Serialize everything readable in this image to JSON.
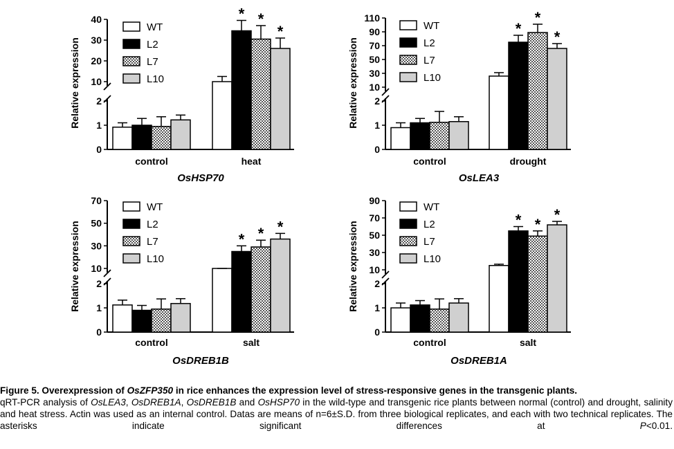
{
  "figure": {
    "legend_entries": [
      "WT",
      "L2",
      "L7",
      "L10"
    ],
    "series_colors": {
      "WT": "#ffffff",
      "L2": "#000000",
      "L7": "#b0b0b0",
      "L10": "#d0d0d0"
    },
    "significance_marker": "*"
  },
  "chart_data": [
    {
      "type": "bar",
      "gene": "OsHSP70",
      "ylabel": "Relative expression",
      "categories": [
        "control",
        "heat"
      ],
      "upper_ticks": [
        "10",
        "20",
        "30",
        "40"
      ],
      "lower_ticks": [
        "0",
        "1",
        "2"
      ],
      "upper_ylim": [
        10,
        40
      ],
      "lower_ylim": [
        0,
        2
      ],
      "series": [
        {
          "name": "WT",
          "values": [
            0.92,
            9.0
          ],
          "errors": [
            0.18,
            3.5
          ],
          "significant": [
            false,
            false
          ]
        },
        {
          "name": "L2",
          "values": [
            1.0,
            34.5
          ],
          "errors": [
            0.28,
            5.0
          ],
          "significant": [
            false,
            true
          ]
        },
        {
          "name": "L7",
          "values": [
            0.95,
            30.5
          ],
          "errors": [
            0.4,
            6.5
          ],
          "significant": [
            false,
            true
          ]
        },
        {
          "name": "L10",
          "values": [
            1.22,
            26.0
          ],
          "errors": [
            0.2,
            5.0
          ],
          "significant": [
            false,
            true
          ]
        }
      ]
    },
    {
      "type": "bar",
      "gene": "OsLEA3",
      "ylabel": "Relative expression",
      "categories": [
        "control",
        "drought"
      ],
      "upper_ticks": [
        "10",
        "30",
        "50",
        "70",
        "90",
        "110"
      ],
      "lower_ticks": [
        "0",
        "1",
        "2"
      ],
      "upper_ylim": [
        10,
        110
      ],
      "lower_ylim": [
        0,
        2
      ],
      "series": [
        {
          "name": "WT",
          "values": [
            0.9,
            26.0
          ],
          "errors": [
            0.2,
            5.0
          ],
          "significant": [
            false,
            false
          ]
        },
        {
          "name": "L2",
          "values": [
            1.1,
            75.0
          ],
          "errors": [
            0.18,
            10.0
          ],
          "significant": [
            false,
            true
          ]
        },
        {
          "name": "L7",
          "values": [
            1.12,
            89.0
          ],
          "errors": [
            0.45,
            12.0
          ],
          "significant": [
            false,
            true
          ]
        },
        {
          "name": "L10",
          "values": [
            1.15,
            66.0
          ],
          "errors": [
            0.2,
            7.0
          ],
          "significant": [
            false,
            true
          ]
        }
      ]
    },
    {
      "type": "bar",
      "gene": "OsDREB1B",
      "ylabel": "Relative expression",
      "categories": [
        "control",
        "salt"
      ],
      "upper_ticks": [
        "10",
        "30",
        "50",
        "70"
      ],
      "lower_ticks": [
        "0",
        "1",
        "2"
      ],
      "upper_ylim": [
        10,
        70
      ],
      "lower_ylim": [
        0,
        2
      ],
      "series": [
        {
          "name": "WT",
          "values": [
            1.12,
            7.0
          ],
          "errors": [
            0.2,
            0.5
          ],
          "significant": [
            false,
            false
          ]
        },
        {
          "name": "L2",
          "values": [
            0.9,
            25.0
          ],
          "errors": [
            0.2,
            5.0
          ],
          "significant": [
            false,
            true
          ]
        },
        {
          "name": "L7",
          "values": [
            0.95,
            29.0
          ],
          "errors": [
            0.42,
            6.0
          ],
          "significant": [
            false,
            true
          ]
        },
        {
          "name": "L10",
          "values": [
            1.18,
            36.0
          ],
          "errors": [
            0.2,
            5.0
          ],
          "significant": [
            false,
            true
          ]
        }
      ]
    },
    {
      "type": "bar",
      "gene": "OsDREB1A",
      "ylabel": "Relative expression",
      "categories": [
        "control",
        "salt"
      ],
      "upper_ticks": [
        "10",
        "30",
        "50",
        "70",
        "90"
      ],
      "lower_ticks": [
        "0",
        "1",
        "2"
      ],
      "upper_ylim": [
        10,
        90
      ],
      "lower_ylim": [
        0,
        2
      ],
      "series": [
        {
          "name": "WT",
          "values": [
            1.0,
            15.0
          ],
          "errors": [
            0.2,
            1.5
          ],
          "significant": [
            false,
            false
          ]
        },
        {
          "name": "L2",
          "values": [
            1.12,
            55.0
          ],
          "errors": [
            0.18,
            5.0
          ],
          "significant": [
            false,
            true
          ]
        },
        {
          "name": "L7",
          "values": [
            0.95,
            49.0
          ],
          "errors": [
            0.42,
            6.0
          ],
          "significant": [
            false,
            true
          ]
        },
        {
          "name": "L10",
          "values": [
            1.2,
            62.0
          ],
          "errors": [
            0.18,
            4.0
          ],
          "significant": [
            false,
            true
          ]
        }
      ]
    }
  ],
  "caption": {
    "title_prefix": "Figure 5. Overexpression of ",
    "title_gene": "OsZFP350",
    "title_suffix": " in rice enhances the expression level of stress-responsive genes in the transgenic plants.",
    "body_1": "qRT-PCR analysis of ",
    "gene_1": "OsLEA3",
    "sep_1": ", ",
    "gene_2": "OsDREB1A",
    "sep_2": ", ",
    "gene_3": "OsDREB1B",
    "sep_3": " and ",
    "gene_4": "OsHSP70",
    "body_2": " in the wild-type and transgenic rice plants between normal (control) and drought, salinity and heat stress. Actin was used as an internal control. Datas are means of n=6±S.D. from three biological replicates, and each with two technical replicates. The asterisks indicate significant differences at ",
    "p_symbol": "P",
    "p_value": "<0.01."
  }
}
